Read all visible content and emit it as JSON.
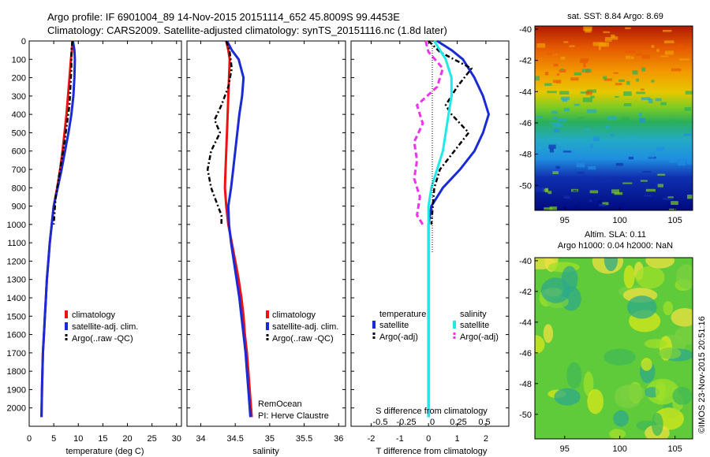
{
  "header": {
    "line1": "Argo profile: IF 6901004_89 14-Nov-2015 20151114_652 45.8009S 99.4453E",
    "line2": "Climatology: CARS2009. Satellite-adjusted climatology: synTS_20151116.nc (1.8d later)"
  },
  "colors": {
    "climatology": "#ee1111",
    "satellite_adj": "#1a2bd6",
    "argo": "#000000",
    "cyan": "#22e8e8",
    "magenta": "#ee33ee"
  },
  "chart_data": [
    {
      "type": "line",
      "panel": "temperature",
      "xlabel": "temperature (deg C)",
      "xlim": [
        0,
        31
      ],
      "ylim": [
        2100,
        0
      ],
      "xticks": [
        0,
        5,
        10,
        15,
        20,
        25,
        30
      ],
      "yticks": [
        0,
        100,
        200,
        300,
        400,
        500,
        600,
        700,
        800,
        900,
        1000,
        1100,
        1200,
        1300,
        1400,
        1500,
        1600,
        1700,
        1800,
        1900,
        2000
      ],
      "legend": [
        "climatology",
        "satellite-adj. clim.",
        "Argo(..raw -QC)"
      ],
      "series": [
        {
          "name": "climatology",
          "style": "solid",
          "color": "#ee1111",
          "x": [
            8.8,
            8.7,
            8.5,
            8.2,
            7.9,
            7.6,
            7.2,
            6.8,
            6.3,
            5.7,
            5.0,
            4.6,
            4.2,
            3.9,
            3.6,
            3.4,
            3.2,
            3.0,
            2.8,
            2.7,
            2.6,
            2.5
          ],
          "y": [
            0,
            50,
            100,
            200,
            300,
            400,
            500,
            600,
            700,
            800,
            900,
            1000,
            1100,
            1200,
            1300,
            1400,
            1500,
            1600,
            1700,
            1800,
            1900,
            2050
          ]
        },
        {
          "name": "satellite-adj. clim.",
          "style": "solid",
          "color": "#1a2bd6",
          "x": [
            8.9,
            9.2,
            9.3,
            9.2,
            9.0,
            8.6,
            8.0,
            7.3,
            6.6,
            5.8,
            5.0,
            4.6,
            4.2,
            3.9,
            3.6,
            3.4,
            3.2,
            3.0,
            2.8,
            2.7,
            2.6,
            2.5
          ],
          "y": [
            0,
            50,
            100,
            200,
            300,
            400,
            500,
            600,
            700,
            800,
            900,
            1000,
            1100,
            1200,
            1300,
            1400,
            1500,
            1600,
            1700,
            1800,
            1900,
            2050
          ]
        },
        {
          "name": "Argo(..raw -QC)",
          "style": "dashdot",
          "color": "#000000",
          "x": [
            8.8,
            8.6,
            8.6,
            8.4,
            8.2,
            7.7,
            7.2,
            6.6,
            6.0,
            5.4,
            5.0
          ],
          "y": [
            0,
            50,
            150,
            250,
            350,
            450,
            550,
            650,
            750,
            850,
            1000
          ]
        }
      ],
      "annotation": []
    },
    {
      "type": "line",
      "panel": "salinity",
      "xlabel": "salinity",
      "xlim": [
        33.8,
        36.1
      ],
      "ylim": [
        2100,
        0
      ],
      "xticks": [
        34,
        34.5,
        35,
        35.5,
        36
      ],
      "legend": [
        "climatology",
        "satellite-adj. clim.",
        "Argo(..raw -QC)"
      ],
      "series": [
        {
          "name": "climatology",
          "style": "solid",
          "color": "#ee1111",
          "x": [
            34.37,
            34.4,
            34.42,
            34.41,
            34.4,
            34.39,
            34.38,
            34.37,
            34.36,
            34.35,
            34.37,
            34.4,
            34.45,
            34.5,
            34.55,
            34.59,
            34.62,
            34.64,
            34.67,
            34.69,
            34.71,
            34.74
          ],
          "y": [
            0,
            50,
            100,
            200,
            300,
            400,
            500,
            600,
            700,
            800,
            900,
            1000,
            1100,
            1200,
            1300,
            1400,
            1500,
            1600,
            1700,
            1800,
            1900,
            2050
          ]
        },
        {
          "name": "satellite-adj. clim.",
          "style": "solid",
          "color": "#1a2bd6",
          "x": [
            34.38,
            34.45,
            34.55,
            34.62,
            34.6,
            34.56,
            34.53,
            34.5,
            34.47,
            34.44,
            34.4,
            34.41,
            34.44,
            34.48,
            34.52,
            34.56,
            34.59,
            34.62,
            34.65,
            34.67,
            34.69,
            34.72
          ],
          "y": [
            0,
            50,
            100,
            200,
            300,
            400,
            500,
            600,
            700,
            800,
            900,
            1000,
            1100,
            1200,
            1300,
            1400,
            1500,
            1600,
            1700,
            1800,
            1900,
            2050
          ]
        },
        {
          "name": "Argo(..raw -QC)",
          "style": "dashdot",
          "color": "#000000",
          "x": [
            34.37,
            34.42,
            34.45,
            34.4,
            34.3,
            34.2,
            34.28,
            34.15,
            34.1,
            34.15,
            34.25,
            34.3,
            34.3
          ],
          "y": [
            0,
            60,
            150,
            250,
            350,
            430,
            500,
            600,
            700,
            800,
            900,
            950,
            1000
          ]
        }
      ],
      "annotation": [
        "RemOcean",
        "PI: Herve Claustre"
      ]
    },
    {
      "type": "line",
      "panel": "difference",
      "xlabel": "T difference from climatology",
      "xlabel_top": "S difference from climatology",
      "xlim": [
        -2.7,
        2.8
      ],
      "ylim": [
        2100,
        0
      ],
      "xticks": [
        -2,
        -1,
        0,
        1,
        2
      ],
      "xticks_top_labels": [
        "-0.5",
        "-0.25",
        "0",
        "0.25",
        "0.5"
      ],
      "legend": {
        "temperature_header": "temperature",
        "salinity_header": "salinity",
        "items": [
          "satellite",
          "Argo(-adj)",
          "satellite",
          "Argo(-adj)"
        ]
      },
      "series": [
        {
          "name": "temperature satellite",
          "style": "solid",
          "color": "#1a2bd6",
          "x": [
            0.3,
            0.8,
            1.2,
            1.6,
            1.9,
            2.1,
            1.9,
            1.6,
            1.1,
            0.5,
            0.1,
            0.0,
            0.0,
            0.0,
            0.0
          ],
          "y": [
            0,
            50,
            100,
            200,
            300,
            400,
            500,
            600,
            700,
            800,
            900,
            1000,
            1200,
            1600,
            2050
          ]
        },
        {
          "name": "temperature Argo(-adj)",
          "style": "dashdot",
          "color": "#000000",
          "x": [
            0.0,
            0.4,
            1.5,
            1.0,
            0.6,
            0.8,
            1.4,
            0.9,
            0.4,
            0.2,
            0.1
          ],
          "y": [
            0,
            60,
            150,
            250,
            350,
            400,
            500,
            600,
            700,
            800,
            1000
          ]
        },
        {
          "name": "salinity satellite",
          "style": "solid",
          "color": "#22e8e8",
          "x": [
            0.2,
            0.6,
            0.8,
            0.8,
            0.7,
            0.6,
            0.5,
            0.3,
            0.1,
            0.0,
            0.0,
            0.0,
            0.0,
            0.0
          ],
          "y": [
            0,
            100,
            200,
            300,
            400,
            500,
            600,
            700,
            800,
            900,
            1000,
            1200,
            1600,
            2050
          ]
        },
        {
          "name": "salinity Argo(-adj)",
          "style": "dashed",
          "color": "#ee33ee",
          "x": [
            -0.1,
            0.0,
            0.5,
            0.3,
            -0.4,
            -0.2,
            -0.5,
            -0.4,
            -0.5,
            -0.3,
            -0.4,
            -0.2
          ],
          "y": [
            0,
            60,
            150,
            250,
            350,
            450,
            550,
            650,
            750,
            850,
            950,
            1000
          ]
        }
      ],
      "annotation": []
    },
    {
      "type": "heatmap",
      "panel": "sst-map",
      "title": "sat. SST: 8.84  Argo: 8.69",
      "xticks": [
        95,
        100,
        105
      ],
      "yticks": [
        -40,
        -42,
        -44,
        -46,
        -48,
        -50
      ],
      "xlim": [
        92.3,
        106.6
      ],
      "ylim": [
        -51.6,
        -39.8
      ]
    },
    {
      "type": "heatmap",
      "panel": "sla-map",
      "title": "Altim. SLA: 0.11",
      "subtitle": "Argo h1000: 0.04  h2000: NaN",
      "xticks": [
        95,
        100,
        105
      ],
      "yticks": [
        -40,
        -42,
        -44,
        -46,
        -48,
        -50
      ],
      "xlim": [
        92.3,
        106.6
      ],
      "ylim": [
        -51.6,
        -39.8
      ]
    }
  ],
  "footer": {
    "watermark": "©IMOS 23-Nov-2015 20:51:16"
  }
}
